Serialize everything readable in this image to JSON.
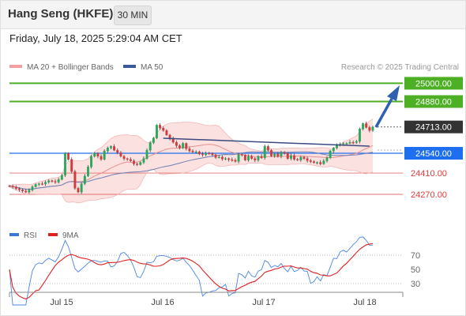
{
  "header": {
    "title": "Hang Seng (HKFE)",
    "timeframe": "30 MIN"
  },
  "datetime": "Friday, July 18, 2025 5:29:04 AM CET",
  "legend": [
    {
      "label": "MA 20 + Bollinger Bands",
      "color": "#f08080"
    },
    {
      "label": "MA 50",
      "color": "#3a5a9a"
    }
  ],
  "copyright": "Research © 2025 Trading Central",
  "chart_data": {
    "type": "candlestick",
    "y_scale_reference": {
      "value_a": 24540,
      "value_b": 24270
    },
    "levels": [
      {
        "value": 25000,
        "label": "25000.00",
        "kind": "resistance",
        "color": "#4caf24"
      },
      {
        "value": 24880,
        "label": "24880.00",
        "kind": "resistance",
        "color": "#4caf24"
      },
      {
        "value": 24713,
        "label": "24713.00",
        "kind": "last",
        "color": "#333333"
      },
      {
        "value": 24540,
        "label": "24540.00",
        "kind": "pivot",
        "color": "#1e6ff0"
      },
      {
        "value": 24410,
        "label": "24410.00",
        "kind": "support",
        "color": "#e07070"
      },
      {
        "value": 24270,
        "label": "24270.00",
        "kind": "support",
        "color": "#e07070"
      }
    ],
    "x_ticks": [
      "Jul 15",
      "Jul 16",
      "Jul 17",
      "Jul 18"
    ],
    "closes": [
      24323,
      24318,
      24307,
      24300,
      24292,
      24285,
      24298,
      24320,
      24335,
      24340,
      24338,
      24350,
      24360,
      24355,
      24350,
      24368,
      24395,
      24540,
      24500,
      24420,
      24310,
      24285,
      24340,
      24390,
      24450,
      24520,
      24540,
      24520,
      24500,
      24555,
      24575,
      24585,
      24560,
      24545,
      24520,
      24505,
      24500,
      24490,
      24470,
      24465,
      24480,
      24505,
      24560,
      24610,
      24640,
      24725,
      24705,
      24690,
      24660,
      24635,
      24612,
      24590,
      24575,
      24605,
      24570,
      24555,
      24548,
      24550,
      24535,
      24530,
      24540,
      24538,
      24530,
      24512,
      24515,
      24502,
      24505,
      24498,
      24495,
      24486,
      24532,
      24528,
      24495,
      24520,
      24505,
      24495,
      24520,
      24510,
      24585,
      24560,
      24522,
      24535,
      24520,
      24545,
      24540,
      24505,
      24525,
      24500,
      24495,
      24515,
      24505,
      24492,
      24485,
      24478,
      24480,
      24470,
      24490,
      24510,
      24555,
      24575,
      24592,
      24600,
      24605,
      24605,
      24612,
      24610,
      24618,
      24700,
      24735,
      24710,
      24690,
      24713
    ],
    "rsi": {
      "ticks": [
        70,
        50,
        30
      ],
      "levels": [
        70,
        30
      ],
      "legend": [
        {
          "label": "RSI",
          "color": "#3a78d8"
        },
        {
          "label": "9MA",
          "color": "#e02020"
        }
      ]
    }
  }
}
